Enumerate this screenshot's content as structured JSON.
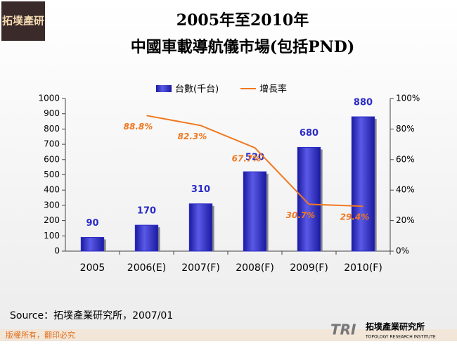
{
  "header": {
    "logo": "拓墣產研",
    "title_line1": "2005年至2010年",
    "title_line2": "中國車載導航儀市場(包括PND)"
  },
  "chart_data": {
    "type": "bar-line",
    "categories": [
      "2005",
      "2006(E)",
      "2007(F)",
      "2008(F)",
      "2009(F)",
      "2010(F)"
    ],
    "series": [
      {
        "name": "台數(千台)",
        "type": "bar",
        "color": "#2b2bc8",
        "values": [
          90,
          170,
          310,
          520,
          680,
          880
        ]
      },
      {
        "name": "增長率",
        "type": "line",
        "axis": "y2",
        "color": "#f07820",
        "values": [
          null,
          88.8,
          82.3,
          67.7,
          30.7,
          29.4
        ],
        "value_labels": [
          null,
          "88.8%",
          "82.3%",
          "67.7%",
          "30.7%",
          "29.4%"
        ]
      }
    ],
    "ylim": [
      0,
      1000
    ],
    "yticks": [
      0,
      100,
      200,
      300,
      400,
      500,
      600,
      700,
      800,
      900,
      1000
    ],
    "y2lim": [
      0,
      100
    ],
    "y2ticks": [
      {
        "value": 0,
        "label": "0%"
      },
      {
        "value": 20,
        "label": "20%"
      },
      {
        "value": 40,
        "label": "40%"
      },
      {
        "value": 60,
        "label": "60%"
      },
      {
        "value": 80,
        "label": "80%"
      },
      {
        "value": 100,
        "label": "100%"
      }
    ],
    "legend": "top"
  },
  "source": "Source：拓墣產業研究所，2007/01",
  "footer": {
    "copyright": "版權所有，翻印必究",
    "brand": "TRI",
    "org": "拓墣產業研究所",
    "org_en": "TOPOLOGY RESEARCH INSTITUTE"
  }
}
